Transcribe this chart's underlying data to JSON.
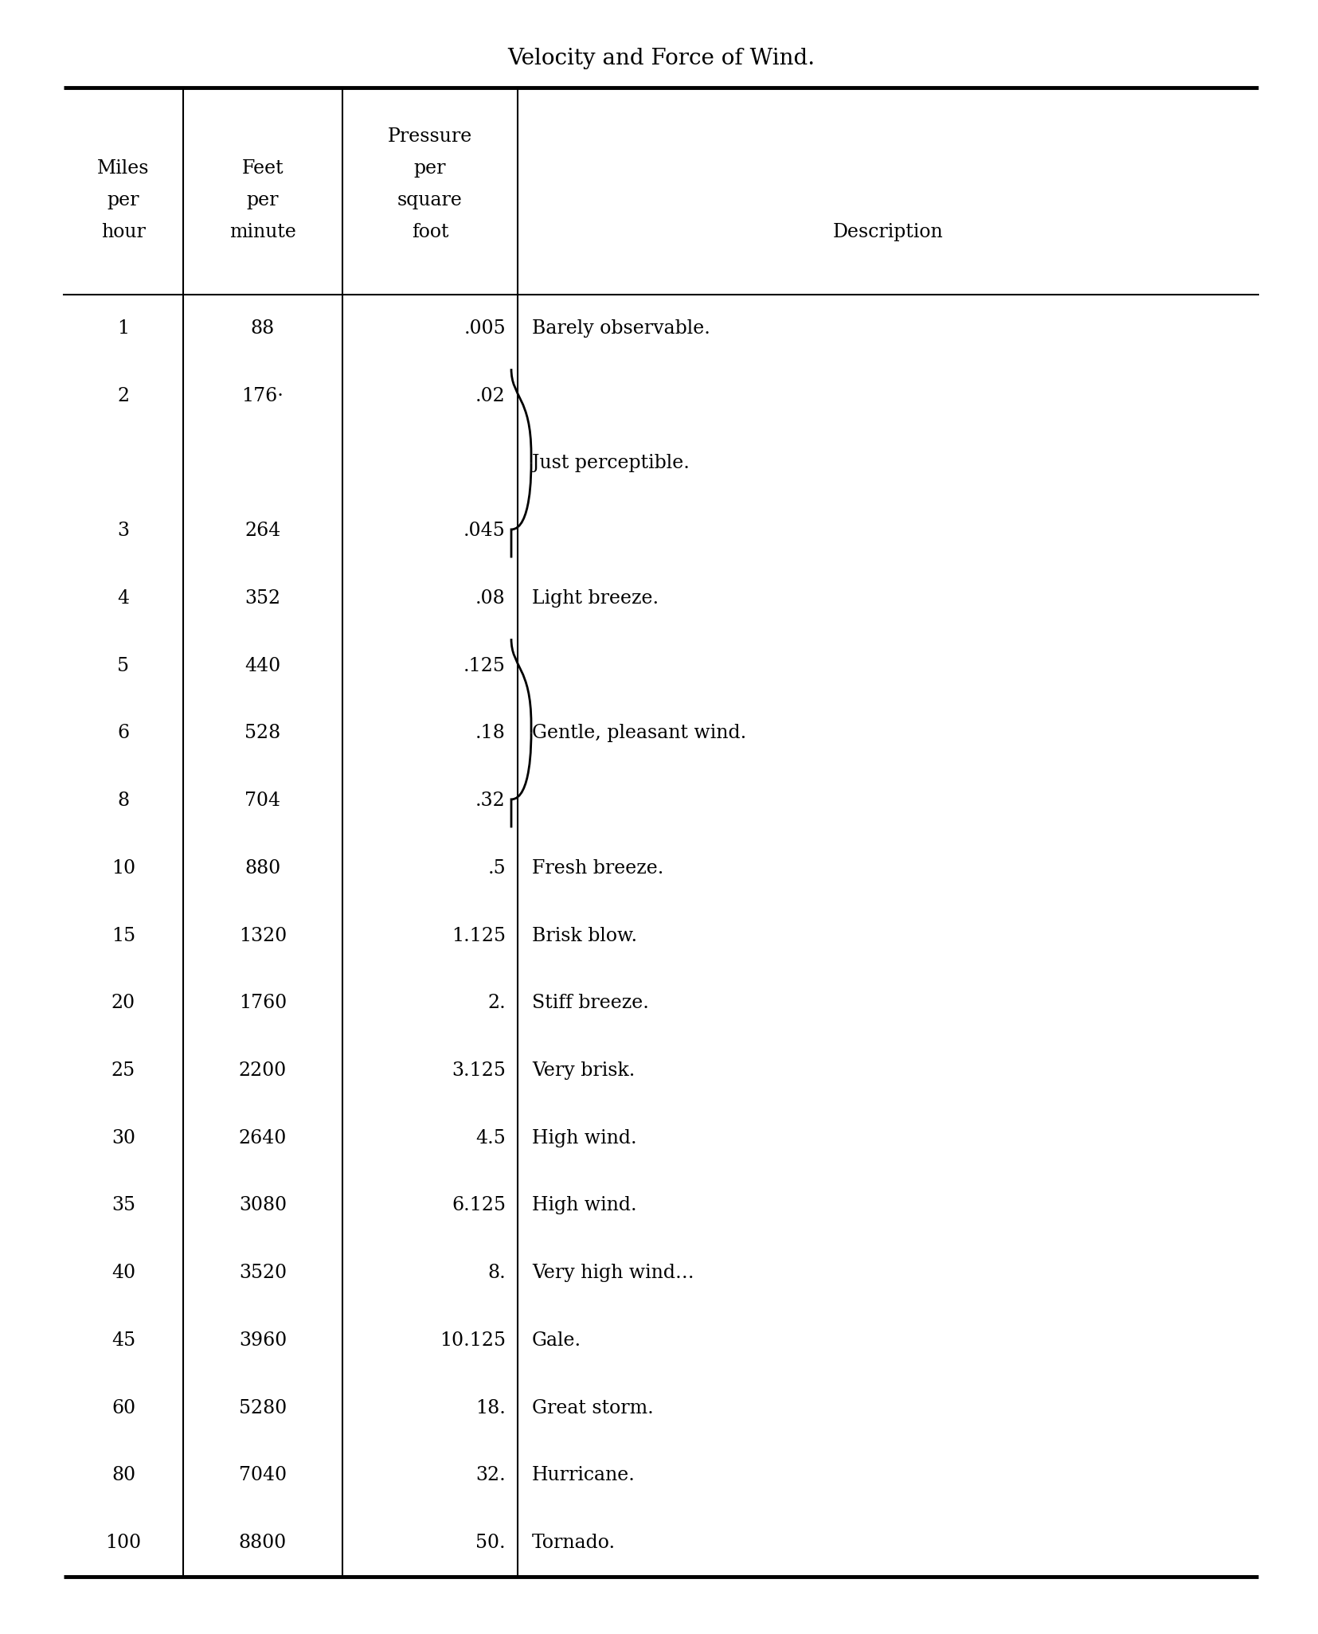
{
  "title": "Velocity and Force of Wind.",
  "col_headers_line1": [
    "Miles",
    "Feet",
    "Pressure",
    ""
  ],
  "col_headers_line2": [
    "per",
    "per",
    "per",
    ""
  ],
  "col_headers_line3": [
    "hour",
    "minute",
    "square",
    "Description"
  ],
  "col_headers_line4": [
    "",
    "",
    "foot",
    ""
  ],
  "rows": [
    {
      "mph": "1",
      "fpm": "88",
      "psf": ".005",
      "desc": "Barely observable.",
      "bracket": ""
    },
    {
      "mph": "2",
      "fpm": "176·",
      "psf": ".02",
      "desc": "",
      "bracket": "top1"
    },
    {
      "mph": "",
      "fpm": "",
      "psf": "",
      "desc": "Just perceptible.",
      "bracket": "mid1"
    },
    {
      "mph": "3",
      "fpm": "264",
      "psf": ".045",
      "desc": "",
      "bracket": "bot1"
    },
    {
      "mph": "4",
      "fpm": "352",
      "psf": ".08",
      "desc": "Light breeze.",
      "bracket": ""
    },
    {
      "mph": "5",
      "fpm": "440",
      "psf": ".125",
      "desc": "",
      "bracket": "top2"
    },
    {
      "mph": "6",
      "fpm": "528",
      "psf": ".18",
      "desc": "Gentle, pleasant wind.",
      "bracket": "mid2"
    },
    {
      "mph": "8",
      "fpm": "704",
      "psf": ".32",
      "desc": "",
      "bracket": "bot2"
    },
    {
      "mph": "10",
      "fpm": "880",
      "psf": ".5",
      "desc": "Fresh breeze.",
      "bracket": ""
    },
    {
      "mph": "15",
      "fpm": "1320",
      "psf": "1.125",
      "desc": "Brisk blow.",
      "bracket": ""
    },
    {
      "mph": "20",
      "fpm": "1760",
      "psf": "2.",
      "desc": "Stiff breeze.",
      "bracket": ""
    },
    {
      "mph": "25",
      "fpm": "2200",
      "psf": "3.125",
      "desc": "Very brisk.",
      "bracket": ""
    },
    {
      "mph": "30",
      "fpm": "2640",
      "psf": "4.5",
      "desc": "High wind.",
      "bracket": ""
    },
    {
      "mph": "35",
      "fpm": "3080",
      "psf": "6.125",
      "desc": "High wind.",
      "bracket": ""
    },
    {
      "mph": "40",
      "fpm": "3520",
      "psf": "8.",
      "desc": "Very high wind…",
      "bracket": ""
    },
    {
      "mph": "45",
      "fpm": "3960",
      "psf": "10.125",
      "desc": "Gale.",
      "bracket": ""
    },
    {
      "mph": "60",
      "fpm": "5280",
      "psf": "18.",
      "desc": "Great storm.",
      "bracket": ""
    },
    {
      "mph": "80",
      "fpm": "7040",
      "psf": "32.",
      "desc": "Hurricane.",
      "bracket": ""
    },
    {
      "mph": "100",
      "fpm": "8800",
      "psf": "50.",
      "desc": "Tornado.",
      "bracket": ""
    }
  ],
  "background_color": "#ffffff",
  "text_color": "#000000",
  "line_color": "#000000",
  "title_fontsize": 20,
  "header_fontsize": 17,
  "body_fontsize": 17,
  "bracket_fontsize": 38
}
